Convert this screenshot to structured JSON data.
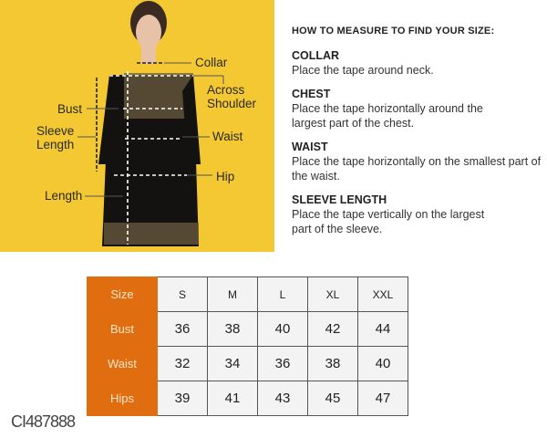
{
  "figure": {
    "labels": {
      "collar": "Collar",
      "across_shoulder": "Across Shoulder",
      "bust": "Bust",
      "sleeve_length": "Sleeve Length",
      "waist": "Waist",
      "hip": "Hip",
      "length": "Length"
    },
    "background_color": "#f3c833"
  },
  "guide": {
    "title": "HOW TO MEASURE TO FIND YOUR SIZE:",
    "sections": [
      {
        "heading": "COLLAR",
        "text": "Place the tape around neck."
      },
      {
        "heading": "CHEST",
        "text": "Place the tape horizontally around the largest part of the chest."
      },
      {
        "heading": "WAIST",
        "text": "Place the tape horizontally on the smallest part of the waist."
      },
      {
        "heading": "SLEEVE LENGTH",
        "text": "Place the tape vertically on the largest part of the sleeve."
      }
    ]
  },
  "size_table": {
    "header_color": "#e06d10",
    "rows": [
      {
        "label": "Size",
        "values": [
          "S",
          "M",
          "L",
          "XL",
          "XXL"
        ]
      },
      {
        "label": "Bust",
        "values": [
          "36",
          "38",
          "40",
          "42",
          "44"
        ]
      },
      {
        "label": "Waist",
        "values": [
          "32",
          "34",
          "36",
          "38",
          "40"
        ]
      },
      {
        "label": "Hips",
        "values": [
          "39",
          "41",
          "43",
          "45",
          "47"
        ]
      }
    ]
  },
  "product_code": "CI487888"
}
